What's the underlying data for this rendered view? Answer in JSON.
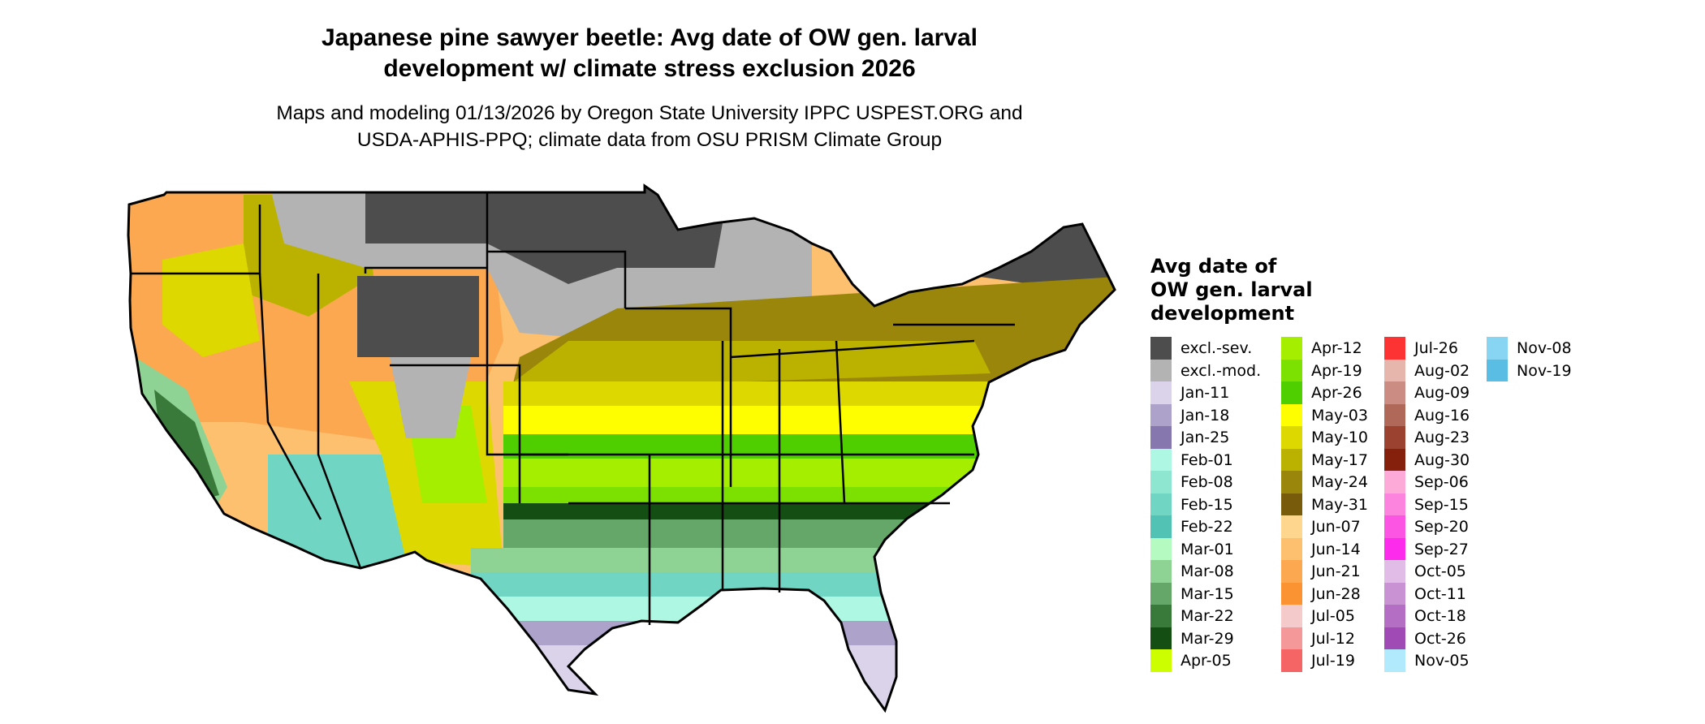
{
  "title": {
    "line1": "Japanese pine sawyer beetle: Avg date of OW gen. larval",
    "line2": "development w/ climate stress exclusion 2026"
  },
  "subtitle": {
    "line1": "Maps and modeling 01/13/2026 by Oregon State University IPPC USPEST.ORG and",
    "line2": "USDA-APHIS-PPQ; climate data from OSU PRISM Climate Group"
  },
  "legend": {
    "title_lines": [
      "Avg date of",
      "OW gen. larval",
      "development"
    ],
    "columns": [
      [
        {
          "label": "excl.-sev.",
          "color": "#4d4d4d"
        },
        {
          "label": "excl.-mod.",
          "color": "#b3b3b3"
        },
        {
          "label": "Jan-11",
          "color": "#dad3ea"
        },
        {
          "label": "Jan-18",
          "color": "#ada2c9"
        },
        {
          "label": "Jan-25",
          "color": "#8677ae"
        },
        {
          "label": "Feb-01",
          "color": "#aef7e2"
        },
        {
          "label": "Feb-08",
          "color": "#8ee6d1"
        },
        {
          "label": "Feb-15",
          "color": "#70d5c3"
        },
        {
          "label": "Feb-22",
          "color": "#52c2b5"
        },
        {
          "label": "Mar-01",
          "color": "#b5fbc1"
        },
        {
          "label": "Mar-08",
          "color": "#8fd394"
        },
        {
          "label": "Mar-15",
          "color": "#64a768"
        },
        {
          "label": "Mar-22",
          "color": "#397a3b"
        },
        {
          "label": "Mar-29",
          "color": "#144e13"
        },
        {
          "label": "Apr-05",
          "color": "#cdfe00"
        }
      ],
      [
        {
          "label": "Apr-12",
          "color": "#a5ee00"
        },
        {
          "label": "Apr-19",
          "color": "#7ce000"
        },
        {
          "label": "Apr-26",
          "color": "#4fce00"
        },
        {
          "label": "May-03",
          "color": "#fefe00"
        },
        {
          "label": "May-10",
          "color": "#dcd800"
        },
        {
          "label": "May-17",
          "color": "#bbb200"
        },
        {
          "label": "May-24",
          "color": "#9a860b"
        },
        {
          "label": "May-31",
          "color": "#785c0b"
        },
        {
          "label": "Jun-07",
          "color": "#fed68e"
        },
        {
          "label": "Jun-14",
          "color": "#fdc06f"
        },
        {
          "label": "Jun-21",
          "color": "#fca851"
        },
        {
          "label": "Jun-28",
          "color": "#fb9333"
        },
        {
          "label": "Jul-05",
          "color": "#f4cacb"
        },
        {
          "label": "Jul-12",
          "color": "#f49899"
        },
        {
          "label": "Jul-19",
          "color": "#f66565"
        }
      ],
      [
        {
          "label": "Jul-26",
          "color": "#fd3232"
        },
        {
          "label": "Aug-02",
          "color": "#e6b6ad"
        },
        {
          "label": "Aug-09",
          "color": "#cb8d83"
        },
        {
          "label": "Aug-16",
          "color": "#b06959"
        },
        {
          "label": "Aug-23",
          "color": "#9b4330"
        },
        {
          "label": "Aug-30",
          "color": "#85200c"
        },
        {
          "label": "Sep-06",
          "color": "#feaad9"
        },
        {
          "label": "Sep-15",
          "color": "#fd84de"
        },
        {
          "label": "Sep-20",
          "color": "#fd55e3"
        },
        {
          "label": "Sep-27",
          "color": "#fd2ced"
        },
        {
          "label": "Oct-05",
          "color": "#e1bce6"
        },
        {
          "label": "Oct-11",
          "color": "#c992d3"
        },
        {
          "label": "Oct-18",
          "color": "#b46ec3"
        },
        {
          "label": "Oct-26",
          "color": "#a04ab6"
        },
        {
          "label": "Nov-05",
          "color": "#b2eafd"
        }
      ],
      [
        {
          "label": "Nov-08",
          "color": "#87d5f2"
        },
        {
          "label": "Nov-19",
          "color": "#5abde4"
        }
      ]
    ]
  }
}
